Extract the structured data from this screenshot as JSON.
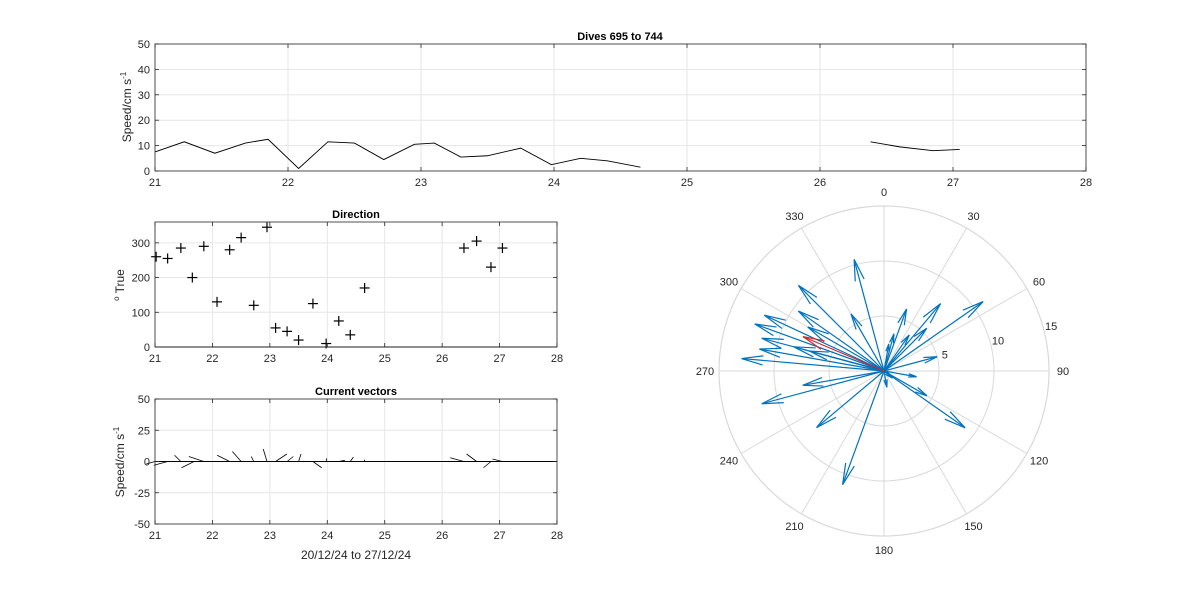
{
  "chart_data": [
    {
      "type": "line",
      "title": "Dives 695 to 744",
      "xlabel": "",
      "ylabel": "Speed/cm s",
      "ylabel_exponent": "-1",
      "xlim": [
        21,
        28
      ],
      "ylim": [
        0,
        50
      ],
      "xticks": [
        "21",
        "22",
        "23",
        "24",
        "25",
        "26",
        "27",
        "28"
      ],
      "yticks": [
        "0",
        "10",
        "20",
        "30",
        "40",
        "50"
      ],
      "grid": true,
      "color": "#000000",
      "series": [
        {
          "x": [
            21.0,
            21.22,
            21.45,
            21.68,
            21.85,
            22.08,
            22.3,
            22.5,
            22.72,
            22.95,
            23.1,
            23.3,
            23.5,
            23.75,
            23.98,
            24.2,
            24.4,
            24.65
          ],
          "y": [
            7.5,
            11.5,
            7,
            11,
            12.5,
            1,
            11.5,
            11,
            4.5,
            10.5,
            11,
            5.5,
            6,
            9,
            2.5,
            5,
            4,
            1.5
          ]
        },
        {
          "x": [
            26.38,
            26.6,
            26.85,
            27.05
          ],
          "y": [
            11.5,
            9.5,
            8,
            8.5
          ]
        }
      ]
    },
    {
      "type": "scatter",
      "title": "Direction",
      "xlabel": "",
      "ylabel": "True",
      "ylabel_prefix": "o",
      "xlim": [
        21,
        28
      ],
      "ylim": [
        0,
        360
      ],
      "xticks": [
        "21",
        "22",
        "23",
        "24",
        "25",
        "26",
        "27",
        "28"
      ],
      "yticks": [
        "0",
        "100",
        "200",
        "300"
      ],
      "grid": true,
      "marker": "+",
      "points": [
        {
          "x": 21.02,
          "y": 260
        },
        {
          "x": 21.22,
          "y": 255
        },
        {
          "x": 21.45,
          "y": 285
        },
        {
          "x": 21.65,
          "y": 200
        },
        {
          "x": 21.85,
          "y": 290
        },
        {
          "x": 22.08,
          "y": 130
        },
        {
          "x": 22.3,
          "y": 280
        },
        {
          "x": 22.5,
          "y": 315
        },
        {
          "x": 22.72,
          "y": 120
        },
        {
          "x": 22.95,
          "y": 345
        },
        {
          "x": 23.1,
          "y": 55
        },
        {
          "x": 23.3,
          "y": 45
        },
        {
          "x": 23.5,
          "y": 20
        },
        {
          "x": 23.75,
          "y": 125
        },
        {
          "x": 23.98,
          "y": 10
        },
        {
          "x": 24.2,
          "y": 75
        },
        {
          "x": 24.4,
          "y": 35
        },
        {
          "x": 24.65,
          "y": 170
        },
        {
          "x": 26.38,
          "y": 285
        },
        {
          "x": 26.6,
          "y": 305
        },
        {
          "x": 26.85,
          "y": 230
        },
        {
          "x": 27.05,
          "y": 285
        }
      ]
    },
    {
      "type": "line",
      "subtype": "quiver",
      "title": "Current vectors",
      "xlabel": "20/12/24 to 27/12/24",
      "ylabel": "Speed/cm s",
      "ylabel_exponent": "-1",
      "xlim": [
        21,
        28
      ],
      "ylim": [
        -50,
        50
      ],
      "xticks": [
        "21",
        "22",
        "23",
        "24",
        "25",
        "26",
        "27",
        "28"
      ],
      "yticks": [
        "-50",
        "-25",
        "0",
        "25",
        "50"
      ],
      "grid": true,
      "vectors": [
        {
          "x": 21.0,
          "u": -7,
          "v": -2
        },
        {
          "x": 21.22,
          "u": -11,
          "v": -3
        },
        {
          "x": 21.45,
          "u": -5,
          "v": 5
        },
        {
          "x": 21.68,
          "u": -10,
          "v": -5
        },
        {
          "x": 21.85,
          "u": -12,
          "v": 4
        },
        {
          "x": 22.08,
          "u": 1,
          "v": 0
        },
        {
          "x": 22.3,
          "u": -10,
          "v": 5
        },
        {
          "x": 22.5,
          "u": -7,
          "v": 8
        },
        {
          "x": 22.72,
          "u": -2,
          "v": 4
        },
        {
          "x": 22.95,
          "u": -3,
          "v": 10
        },
        {
          "x": 23.1,
          "u": 9,
          "v": 6
        },
        {
          "x": 23.3,
          "u": 5,
          "v": 4
        },
        {
          "x": 23.5,
          "u": 2,
          "v": 6
        },
        {
          "x": 23.75,
          "u": 7,
          "v": -5
        },
        {
          "x": 23.98,
          "u": 0.5,
          "v": 2.5
        },
        {
          "x": 24.2,
          "u": 5,
          "v": 1
        },
        {
          "x": 24.4,
          "u": 2.5,
          "v": 3.5
        },
        {
          "x": 24.65,
          "u": -0.3,
          "v": 1.5
        },
        {
          "x": 26.38,
          "u": -11,
          "v": 3
        },
        {
          "x": 26.6,
          "u": -8,
          "v": 6
        },
        {
          "x": 26.85,
          "u": -6,
          "v": -5
        },
        {
          "x": 27.05,
          "u": -8,
          "v": 2
        }
      ]
    },
    {
      "type": "scatter",
      "subtype": "compass",
      "title": "",
      "angle_labels": [
        "0",
        "30",
        "60",
        "90",
        "120",
        "150",
        "180",
        "210",
        "240",
        "270",
        "300",
        "330"
      ],
      "radial_ticks": [
        "5",
        "10",
        "15"
      ],
      "rmax": 15,
      "arrow_color": "#0072bd",
      "mean_color": "#d62728",
      "vectors": [
        {
          "dir": 260,
          "speed": 7.5
        },
        {
          "dir": 255,
          "speed": 11.5
        },
        {
          "dir": 285,
          "speed": 7
        },
        {
          "dir": 200,
          "speed": 11
        },
        {
          "dir": 290,
          "speed": 12.5
        },
        {
          "dir": 130,
          "speed": 1
        },
        {
          "dir": 280,
          "speed": 11.5
        },
        {
          "dir": 315,
          "speed": 11
        },
        {
          "dir": 120,
          "speed": 4.5
        },
        {
          "dir": 345,
          "speed": 10.5
        },
        {
          "dir": 55,
          "speed": 11
        },
        {
          "dir": 45,
          "speed": 5.5
        },
        {
          "dir": 20,
          "speed": 6
        },
        {
          "dir": 125,
          "speed": 9
        },
        {
          "dir": 10,
          "speed": 2.5
        },
        {
          "dir": 75,
          "speed": 5
        },
        {
          "dir": 35,
          "speed": 4
        },
        {
          "dir": 170,
          "speed": 1.5
        },
        {
          "dir": 285,
          "speed": 11.5
        },
        {
          "dir": 305,
          "speed": 9.5
        },
        {
          "dir": 230,
          "speed": 8
        },
        {
          "dir": 285,
          "speed": 8.5
        },
        {
          "dir": 300,
          "speed": 8
        },
        {
          "dir": 275,
          "speed": 13
        },
        {
          "dir": 295,
          "speed": 12
        },
        {
          "dir": 330,
          "speed": 6
        },
        {
          "dir": 100,
          "speed": 3
        },
        {
          "dir": 40,
          "speed": 8
        },
        {
          "dir": 15,
          "speed": 3.5
        }
      ],
      "mean_vector": {
        "dir": 293,
        "speed": 8
      }
    }
  ]
}
